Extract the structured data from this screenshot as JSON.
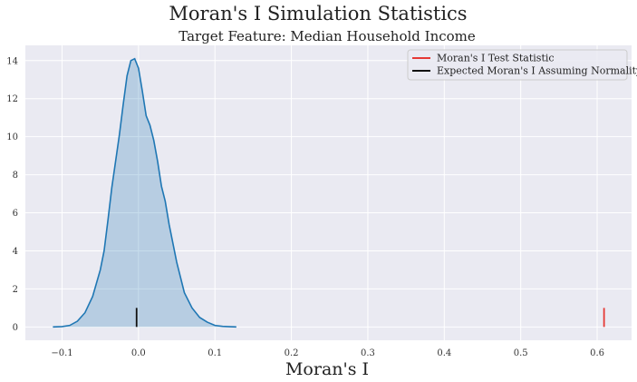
{
  "chart_data": {
    "type": "area",
    "title": "Moran's I Simulation Statistics",
    "subtitle": "Target Feature: Median Household Income",
    "xlabel": "Moran's I",
    "ylabel": "",
    "xlim": [
      -0.148,
      0.645
    ],
    "ylim": [
      -0.7,
      14.8
    ],
    "xticks": [
      -0.1,
      0.0,
      0.1,
      0.2,
      0.3,
      0.4,
      0.5,
      0.6
    ],
    "xtick_labels": [
      "−0.1",
      "0.0",
      "0.1",
      "0.2",
      "0.3",
      "0.4",
      "0.5",
      "0.6"
    ],
    "yticks": [
      0,
      2,
      4,
      6,
      8,
      10,
      12,
      14
    ],
    "ytick_labels": [
      "0",
      "2",
      "4",
      "6",
      "8",
      "10",
      "12",
      "14"
    ],
    "grid": true,
    "legend_position": "top-right",
    "density": {
      "x": [
        -0.112,
        -0.1,
        -0.09,
        -0.08,
        -0.07,
        -0.06,
        -0.05,
        -0.045,
        -0.04,
        -0.035,
        -0.03,
        -0.025,
        -0.02,
        -0.015,
        -0.01,
        -0.005,
        0.0,
        0.005,
        0.01,
        0.015,
        0.02,
        0.025,
        0.03,
        0.035,
        0.04,
        0.05,
        0.06,
        0.07,
        0.08,
        0.09,
        0.1,
        0.11,
        0.12,
        0.128
      ],
      "y": [
        0.0,
        0.02,
        0.08,
        0.3,
        0.75,
        1.6,
        3.0,
        4.0,
        5.6,
        7.3,
        8.7,
        10.1,
        11.7,
        13.2,
        14.0,
        14.1,
        13.6,
        12.4,
        11.1,
        10.6,
        9.8,
        8.7,
        7.4,
        6.6,
        5.4,
        3.4,
        1.8,
        1.0,
        0.5,
        0.25,
        0.08,
        0.03,
        0.01,
        0.0
      ],
      "color": "#1f77b4",
      "fill": "#1f77b4"
    },
    "markers": [
      {
        "name": "Moran's I Test Statistic",
        "x": 0.609,
        "y0": 0.0,
        "y1": 1.0,
        "color": "#e53935"
      },
      {
        "name": "Expected Moran's I Assuming Normality",
        "x": -0.0025,
        "y0": 0.0,
        "y1": 1.0,
        "color": "#111111"
      }
    ],
    "background": "#eaeaf2",
    "grid_color": "#ffffff"
  }
}
